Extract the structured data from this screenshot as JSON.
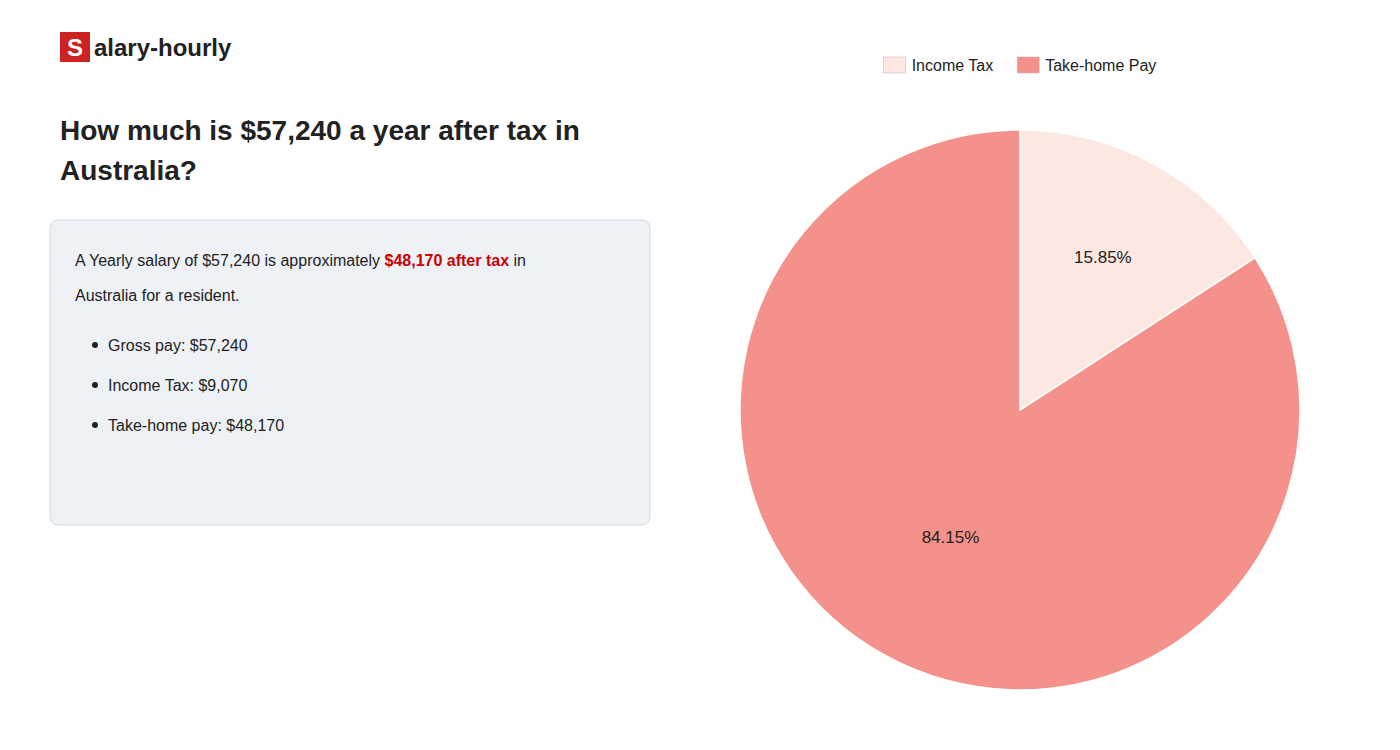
{
  "chart_data": {
    "type": "pie",
    "title": [
      "How much is $57,240 a year after tax in",
      "Australia?"
    ],
    "annotations": [
      [
        {
          "text": "S",
          "color": "#cc2222"
        },
        {
          "text": "alary-hourly"
        }
      ],
      [
        {
          "text": "A Yearly salary of $57,240 is approximately "
        },
        {
          "text": "$48,170 after tax",
          "color": "#cc0000"
        },
        {
          "text": " in"
        }
      ],
      "Australia for a resident.",
      "Gross pay: $57,240",
      "Income Tax: $9,070",
      "Take-home pay: $48,170"
    ],
    "categories": [
      "Income Tax",
      "Take-home Pay"
    ],
    "values": [
      15.85,
      84.15
    ],
    "value_labels": [
      "15.85%",
      "84.15%"
    ],
    "colors": [
      "#fce8e0",
      "#f4918a"
    ],
    "data_labels": true,
    "legend": "top"
  }
}
